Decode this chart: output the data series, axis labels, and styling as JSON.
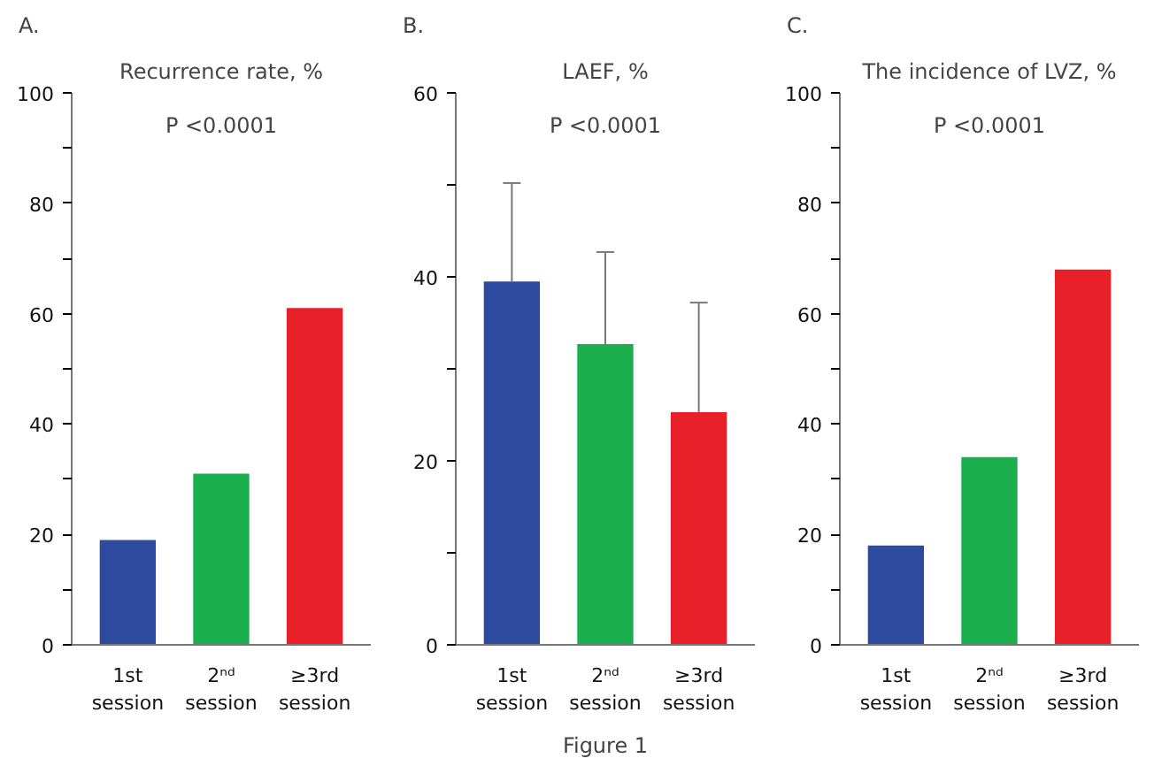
{
  "chart_data": [
    {
      "type": "bar",
      "title": "A.",
      "subtitle": "Recurrence rate, %",
      "categories": [
        "1st session",
        "2ⁿᵈ session",
        "≥3rd session"
      ],
      "values": [
        19,
        31,
        61
      ],
      "colors": [
        "#2e4a9e",
        "#1aae4c",
        "#e8202a"
      ],
      "ylim": [
        0,
        100
      ],
      "yticks": [
        0,
        {
          "value": 10,
          "label": null
        },
        20,
        {
          "value": 30,
          "label": null
        },
        40,
        {
          "value": 50,
          "label": null
        },
        60,
        {
          "value": 70,
          "label": null
        },
        80,
        {
          "value": 90,
          "label": null
        },
        100
      ],
      "grid": false,
      "annotations": [
        "P <0.0001"
      ]
    },
    {
      "type": "bar",
      "title": "B.",
      "subtitle": "LAEF, %",
      "categories": [
        "1st session",
        "2ⁿᵈ session",
        "≥3rd session"
      ],
      "values": [
        39.5,
        32.7,
        25.3
      ],
      "errors": [
        [
          39.5,
          50.2
        ],
        [
          32.7,
          42.7
        ],
        [
          25.3,
          37.2
        ]
      ],
      "colors": [
        "#2e4a9e",
        "#1aae4c",
        "#e8202a"
      ],
      "ylim": [
        0,
        60
      ],
      "yticks": [
        0,
        {
          "value": 10,
          "label": null
        },
        20,
        {
          "value": 30,
          "label": null
        },
        40,
        {
          "value": 50,
          "label": null
        },
        60
      ],
      "grid": false,
      "annotations": [
        "P <0.0001",
        "Figure 1"
      ]
    },
    {
      "type": "bar",
      "title": "C.",
      "subtitle": "The incidence of LVZ, %",
      "categories": [
        "1st session",
        "2ⁿᵈ session",
        "≥3rd session"
      ],
      "values": [
        18,
        34,
        68
      ],
      "colors": [
        "#2e4a9e",
        "#1aae4c",
        "#e8202a"
      ],
      "ylim": [
        0,
        100
      ],
      "yticks": [
        0,
        {
          "value": 10,
          "label": null
        },
        20,
        {
          "value": 30,
          "label": null
        },
        40,
        {
          "value": 50,
          "label": null
        },
        60,
        {
          "value": 70,
          "label": null
        },
        80,
        {
          "value": 90,
          "label": null
        },
        100
      ],
      "grid": false,
      "annotations": [
        "P <0.0001"
      ]
    }
  ]
}
